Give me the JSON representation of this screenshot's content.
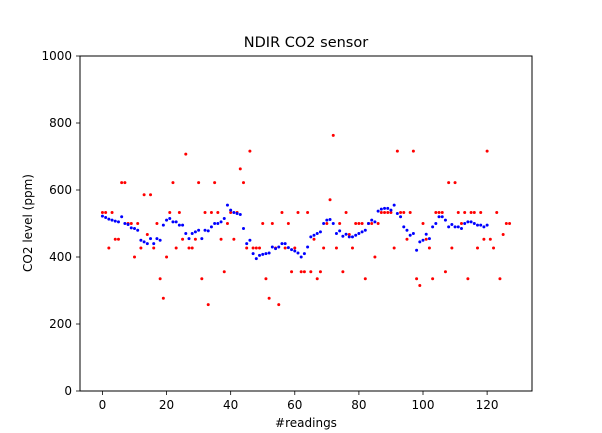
{
  "chart_data": {
    "type": "scatter",
    "title": "NDIR CO2 sensor",
    "xlabel": "#readings",
    "ylabel": "CO2 level (ppm)",
    "xlim": [
      -7,
      134
    ],
    "ylim": [
      0,
      1000
    ],
    "xticks": [
      0,
      20,
      40,
      60,
      80,
      100,
      120
    ],
    "yticks": [
      0,
      200,
      400,
      600,
      800,
      1000
    ],
    "grid": false,
    "legend": "none",
    "series": [
      {
        "color": "#ff0000",
        "points": [
          [
            0,
            533
          ],
          [
            1,
            533
          ],
          [
            2,
            427
          ],
          [
            3,
            533
          ],
          [
            4,
            453
          ],
          [
            5,
            453
          ],
          [
            6,
            622
          ],
          [
            7,
            622
          ],
          [
            8,
            500
          ],
          [
            9,
            500
          ],
          [
            10,
            400
          ],
          [
            11,
            500
          ],
          [
            12,
            427
          ],
          [
            13,
            586
          ],
          [
            14,
            467
          ],
          [
            15,
            586
          ],
          [
            16,
            427
          ],
          [
            17,
            500
          ],
          [
            18,
            335
          ],
          [
            19,
            277
          ],
          [
            20,
            400
          ],
          [
            21,
            533
          ],
          [
            22,
            622
          ],
          [
            23,
            427
          ],
          [
            24,
            533
          ],
          [
            25,
            453
          ],
          [
            26,
            707
          ],
          [
            27,
            427
          ],
          [
            28,
            427
          ],
          [
            29,
            453
          ],
          [
            30,
            622
          ],
          [
            31,
            335
          ],
          [
            32,
            533
          ],
          [
            33,
            258
          ],
          [
            34,
            533
          ],
          [
            35,
            622
          ],
          [
            36,
            533
          ],
          [
            37,
            453
          ],
          [
            38,
            356
          ],
          [
            39,
            500
          ],
          [
            40,
            533
          ],
          [
            41,
            453
          ],
          [
            42,
            533
          ],
          [
            43,
            663
          ],
          [
            44,
            622
          ],
          [
            45,
            427
          ],
          [
            46,
            716
          ],
          [
            47,
            427
          ],
          [
            48,
            427
          ],
          [
            49,
            427
          ],
          [
            50,
            500
          ],
          [
            51,
            335
          ],
          [
            52,
            277
          ],
          [
            53,
            500
          ],
          [
            54,
            427
          ],
          [
            55,
            258
          ],
          [
            56,
            533
          ],
          [
            57,
            427
          ],
          [
            58,
            500
          ],
          [
            59,
            356
          ],
          [
            60,
            427
          ],
          [
            61,
            533
          ],
          [
            62,
            356
          ],
          [
            63,
            356
          ],
          [
            64,
            533
          ],
          [
            65,
            356
          ],
          [
            66,
            453
          ],
          [
            67,
            335
          ],
          [
            68,
            356
          ],
          [
            69,
            427
          ],
          [
            70,
            500
          ],
          [
            71,
            571
          ],
          [
            72,
            763
          ],
          [
            73,
            427
          ],
          [
            74,
            500
          ],
          [
            75,
            356
          ],
          [
            76,
            533
          ],
          [
            77,
            467
          ],
          [
            78,
            427
          ],
          [
            79,
            500
          ],
          [
            80,
            500
          ],
          [
            81,
            500
          ],
          [
            82,
            335
          ],
          [
            83,
            500
          ],
          [
            84,
            500
          ],
          [
            85,
            400
          ],
          [
            86,
            500
          ],
          [
            87,
            533
          ],
          [
            88,
            533
          ],
          [
            89,
            533
          ],
          [
            90,
            533
          ],
          [
            91,
            427
          ],
          [
            92,
            716
          ],
          [
            93,
            533
          ],
          [
            94,
            533
          ],
          [
            95,
            453
          ],
          [
            96,
            533
          ],
          [
            97,
            716
          ],
          [
            98,
            335
          ],
          [
            99,
            315
          ],
          [
            100,
            500
          ],
          [
            101,
            453
          ],
          [
            102,
            427
          ],
          [
            103,
            335
          ],
          [
            104,
            533
          ],
          [
            105,
            533
          ],
          [
            106,
            533
          ],
          [
            107,
            356
          ],
          [
            108,
            622
          ],
          [
            109,
            427
          ],
          [
            110,
            622
          ],
          [
            111,
            533
          ],
          [
            112,
            500
          ],
          [
            113,
            533
          ],
          [
            114,
            335
          ],
          [
            115,
            533
          ],
          [
            116,
            533
          ],
          [
            117,
            427
          ],
          [
            118,
            533
          ],
          [
            119,
            453
          ],
          [
            120,
            716
          ],
          [
            121,
            453
          ],
          [
            122,
            427
          ],
          [
            123,
            533
          ],
          [
            124,
            335
          ],
          [
            125,
            467
          ],
          [
            126,
            500
          ],
          [
            127,
            500
          ]
        ]
      },
      {
        "color": "#0000ff",
        "points": [
          [
            0,
            522
          ],
          [
            1,
            518
          ],
          [
            2,
            513
          ],
          [
            3,
            510
          ],
          [
            4,
            507
          ],
          [
            5,
            505
          ],
          [
            6,
            520
          ],
          [
            7,
            500
          ],
          [
            8,
            497
          ],
          [
            9,
            487
          ],
          [
            10,
            485
          ],
          [
            11,
            480
          ],
          [
            12,
            450
          ],
          [
            13,
            445
          ],
          [
            14,
            440
          ],
          [
            15,
            455
          ],
          [
            16,
            440
          ],
          [
            17,
            455
          ],
          [
            18,
            450
          ],
          [
            19,
            495
          ],
          [
            20,
            510
          ],
          [
            21,
            515
          ],
          [
            22,
            505
          ],
          [
            23,
            505
          ],
          [
            24,
            495
          ],
          [
            25,
            495
          ],
          [
            26,
            470
          ],
          [
            27,
            455
          ],
          [
            28,
            470
          ],
          [
            29,
            475
          ],
          [
            30,
            480
          ],
          [
            31,
            455
          ],
          [
            32,
            480
          ],
          [
            33,
            478
          ],
          [
            34,
            490
          ],
          [
            35,
            500
          ],
          [
            36,
            500
          ],
          [
            37,
            505
          ],
          [
            38,
            515
          ],
          [
            39,
            555
          ],
          [
            40,
            540
          ],
          [
            41,
            533
          ],
          [
            42,
            530
          ],
          [
            43,
            527
          ],
          [
            44,
            485
          ],
          [
            45,
            440
          ],
          [
            46,
            450
          ],
          [
            47,
            410
          ],
          [
            48,
            395
          ],
          [
            49,
            405
          ],
          [
            50,
            408
          ],
          [
            51,
            410
          ],
          [
            52,
            412
          ],
          [
            53,
            430
          ],
          [
            54,
            425
          ],
          [
            55,
            430
          ],
          [
            56,
            440
          ],
          [
            57,
            440
          ],
          [
            58,
            428
          ],
          [
            59,
            422
          ],
          [
            60,
            418
          ],
          [
            61,
            412
          ],
          [
            62,
            400
          ],
          [
            63,
            410
          ],
          [
            64,
            430
          ],
          [
            65,
            460
          ],
          [
            66,
            465
          ],
          [
            67,
            470
          ],
          [
            68,
            475
          ],
          [
            69,
            500
          ],
          [
            70,
            510
          ],
          [
            71,
            512
          ],
          [
            72,
            500
          ],
          [
            73,
            470
          ],
          [
            74,
            478
          ],
          [
            75,
            462
          ],
          [
            76,
            468
          ],
          [
            77,
            460
          ],
          [
            78,
            460
          ],
          [
            79,
            465
          ],
          [
            80,
            470
          ],
          [
            81,
            475
          ],
          [
            82,
            480
          ],
          [
            83,
            500
          ],
          [
            84,
            510
          ],
          [
            85,
            505
          ],
          [
            86,
            537
          ],
          [
            87,
            543
          ],
          [
            88,
            545
          ],
          [
            89,
            545
          ],
          [
            90,
            540
          ],
          [
            91,
            555
          ],
          [
            92,
            530
          ],
          [
            93,
            520
          ],
          [
            94,
            490
          ],
          [
            95,
            480
          ],
          [
            96,
            465
          ],
          [
            97,
            470
          ],
          [
            98,
            420
          ],
          [
            99,
            445
          ],
          [
            100,
            450
          ],
          [
            101,
            468
          ],
          [
            102,
            455
          ],
          [
            103,
            490
          ],
          [
            104,
            500
          ],
          [
            105,
            520
          ],
          [
            106,
            520
          ],
          [
            107,
            510
          ],
          [
            108,
            490
          ],
          [
            109,
            497
          ],
          [
            110,
            490
          ],
          [
            111,
            490
          ],
          [
            112,
            485
          ],
          [
            113,
            500
          ],
          [
            114,
            505
          ],
          [
            115,
            505
          ],
          [
            116,
            500
          ],
          [
            117,
            495
          ],
          [
            118,
            495
          ],
          [
            119,
            490
          ],
          [
            120,
            495
          ]
        ]
      }
    ]
  }
}
